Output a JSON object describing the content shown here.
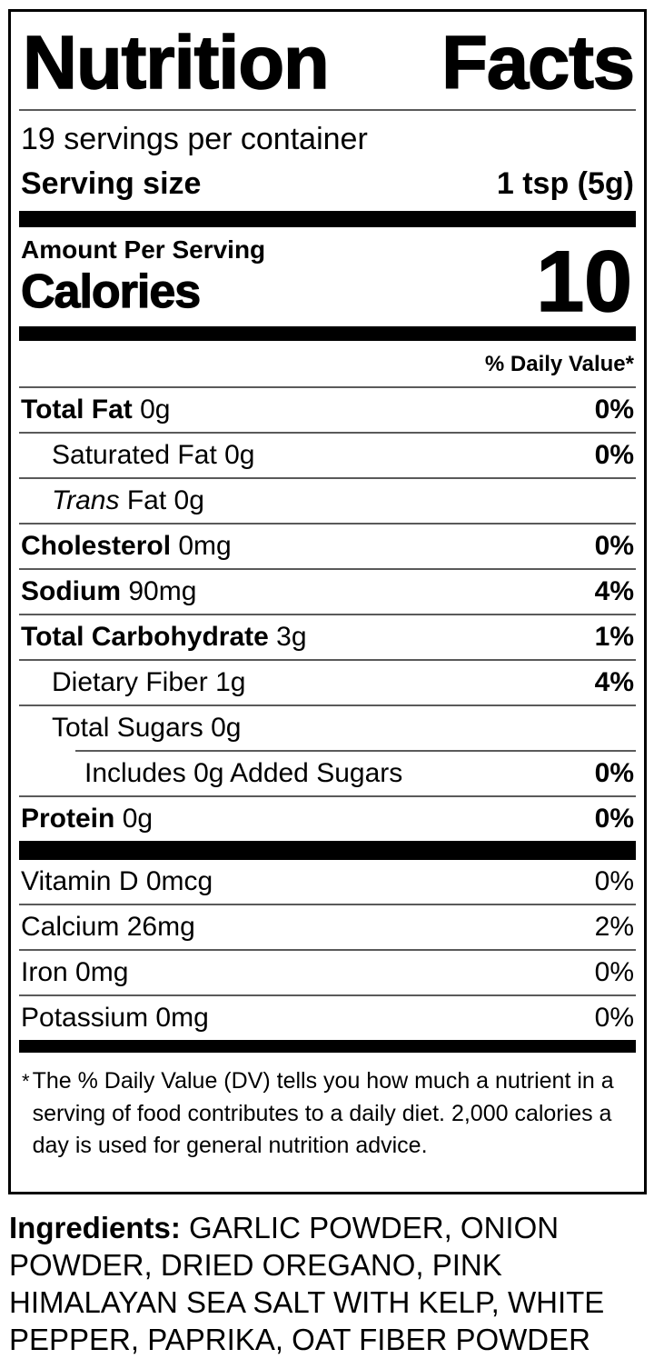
{
  "label": {
    "title_word_1": "Nutrition",
    "title_word_2": "Facts",
    "servings_per_container": "19 servings per container",
    "serving_size_label": "Serving size",
    "serving_size_value": "1 tsp (5g)",
    "amount_per_serving": "Amount Per Serving",
    "calories_label": "Calories",
    "calories_value": "10",
    "daily_value_header": "% Daily Value*",
    "nutrients": [
      {
        "name": "Total Fat",
        "amount": "0g",
        "dv": "0%"
      },
      {
        "name": "Saturated Fat",
        "amount": "0g",
        "dv": "0%"
      },
      {
        "name_italic": "Trans",
        "name_rest": "Fat",
        "amount": "0g",
        "dv": ""
      },
      {
        "name": "Cholesterol",
        "amount": "0mg",
        "dv": "0%"
      },
      {
        "name": "Sodium",
        "amount": "90mg",
        "dv": "4%"
      },
      {
        "name": "Total Carbohydrate",
        "amount": "3g",
        "dv": "1%"
      },
      {
        "name": "Dietary Fiber",
        "amount": "1g",
        "dv": "4%"
      },
      {
        "name": "Total Sugars",
        "amount": "0g",
        "dv": ""
      },
      {
        "name": "Includes 0g Added Sugars",
        "amount": "",
        "dv": "0%"
      },
      {
        "name": "Protein",
        "amount": "0g",
        "dv": "0%"
      }
    ],
    "vitamins": [
      {
        "name": "Vitamin D",
        "amount": "0mcg",
        "dv": "0%"
      },
      {
        "name": "Calcium",
        "amount": "26mg",
        "dv": "2%"
      },
      {
        "name": "Iron",
        "amount": "0mg",
        "dv": "0%"
      },
      {
        "name": "Potassium",
        "amount": "0mg",
        "dv": "0%"
      }
    ],
    "footnote_star": "*",
    "footnote": "The % Daily Value (DV) tells you how much a nutrient in a serving of food contributes to a daily diet. 2,000 calories a day is used for general nutrition advice."
  },
  "ingredients": {
    "label": "Ingredients:",
    "text": "GARLIC POWDER, ONION POWDER, DRIED OREGANO, PINK HIMALAYAN SEA SALT WITH KELP, WHITE PEPPER, PAPRIKA, OAT FIBER POWDER"
  },
  "colors": {
    "text": "#000000",
    "background": "#ffffff",
    "rule": "#5a5a5a"
  }
}
